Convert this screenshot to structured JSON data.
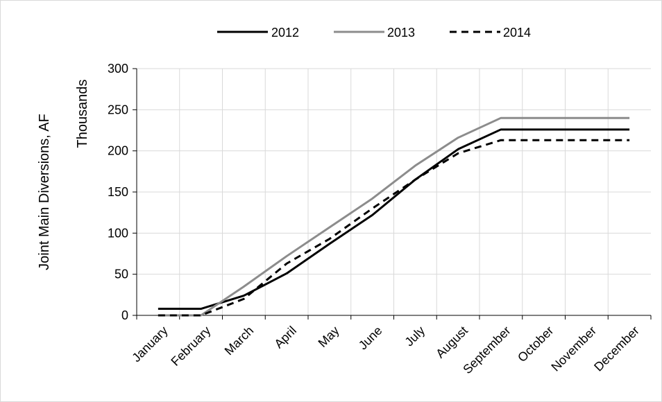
{
  "chart_data": {
    "type": "line",
    "categories": [
      "January",
      "February",
      "March",
      "April",
      "May",
      "June",
      "July",
      "August",
      "September",
      "October",
      "November",
      "December"
    ],
    "series": [
      {
        "name": "2012",
        "color": "#000000",
        "dash": "solid",
        "values": [
          8,
          8,
          24,
          51,
          87,
          122,
          165,
          202,
          226,
          226,
          226,
          226
        ]
      },
      {
        "name": "2013",
        "color": "#8c8c8c",
        "dash": "solid",
        "values": [
          0,
          0,
          35,
          72,
          107,
          142,
          182,
          216,
          240,
          240,
          240,
          240
        ]
      },
      {
        "name": "2014",
        "color": "#000000",
        "dash": "dashed",
        "values": [
          0,
          0,
          20,
          63,
          93,
          130,
          165,
          197,
          213,
          213,
          213,
          213
        ]
      }
    ],
    "xlabel": "",
    "ylabel": "Joint Main Diversions, AF",
    "ylabel_unit": "Thousands",
    "ylim": [
      0,
      300
    ],
    "yticks": [
      0,
      50,
      100,
      150,
      200,
      250,
      300
    ],
    "grid": true,
    "legend_position": "top"
  }
}
